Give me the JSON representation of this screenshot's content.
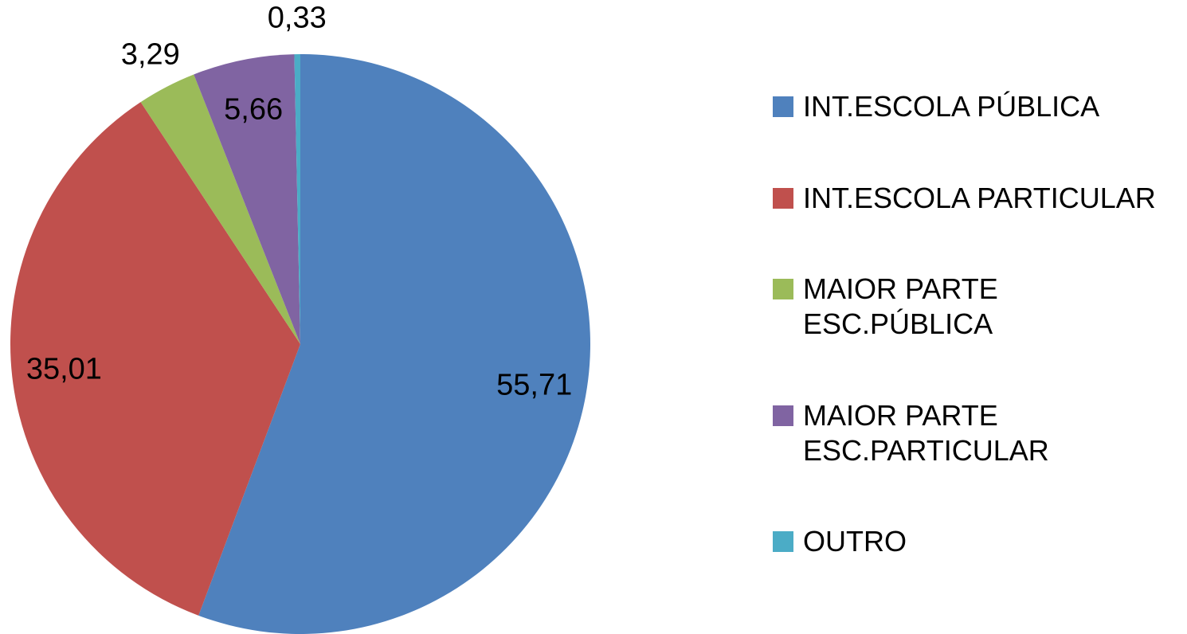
{
  "chart_data": {
    "type": "pie",
    "categories": [
      "INT.ESCOLA PÚBLICA",
      "INT.ESCOLA PARTICULAR",
      "MAIOR PARTE ESC.PÚBLICA",
      "MAIOR PARTE ESC.PARTICULAR",
      "OUTRO"
    ],
    "values": [
      55.71,
      35.01,
      3.29,
      5.66,
      0.33
    ],
    "value_labels": [
      "55,71",
      "35,01",
      "3,29",
      "5,66",
      "0,33"
    ],
    "colors": [
      "#4f81bd",
      "#c0504d",
      "#9bbb59",
      "#8064a2",
      "#4bacc6"
    ],
    "legend": "right"
  }
}
